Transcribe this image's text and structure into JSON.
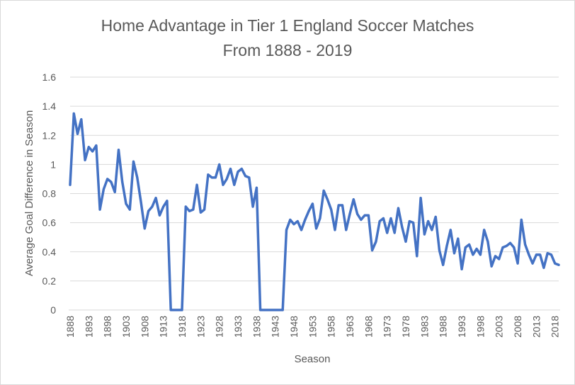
{
  "chart_data": {
    "type": "line",
    "title_line1": "Home Advantage in Tier 1 England Soccer Matches",
    "title_line2": "From 1888 - 2019",
    "xlabel": "Season",
    "ylabel": "Average Goal Difference in Season",
    "ylim": [
      0,
      1.6
    ],
    "y_ticks": [
      "0",
      "0.2",
      "0.4",
      "0.6",
      "0.8",
      "1",
      "1.2",
      "1.4",
      "1.6"
    ],
    "x_tick_labels": [
      "1888",
      "1893",
      "1898",
      "1903",
      "1908",
      "1913",
      "1918",
      "1923",
      "1928",
      "1933",
      "1938",
      "1943",
      "1948",
      "1953",
      "1958",
      "1963",
      "1968",
      "1973",
      "1978",
      "1983",
      "1988",
      "1993",
      "1998",
      "2003",
      "2008",
      "2013",
      "2018"
    ],
    "grid": "horizontal",
    "legend": "none",
    "line_color": "#4472c4",
    "series": [
      {
        "x": [
          1888,
          1889,
          1890,
          1891,
          1892,
          1893,
          1894,
          1895,
          1896,
          1897,
          1898,
          1899,
          1900,
          1901,
          1902,
          1903,
          1904,
          1905,
          1906,
          1907,
          1908,
          1909,
          1910,
          1911,
          1912,
          1913,
          1914,
          1915,
          1916,
          1917,
          1918,
          1919,
          1920,
          1921,
          1922,
          1923,
          1924,
          1925,
          1926,
          1927,
          1928,
          1929,
          1930,
          1931,
          1932,
          1933,
          1934,
          1935,
          1936,
          1937,
          1938,
          1939,
          1940,
          1941,
          1942,
          1943,
          1944,
          1945,
          1946,
          1947,
          1948,
          1949,
          1950,
          1951,
          1952,
          1953,
          1954,
          1955,
          1956,
          1957,
          1958,
          1959,
          1960,
          1961,
          1962,
          1963,
          1964,
          1965,
          1966,
          1967,
          1968,
          1969,
          1970,
          1971,
          1972,
          1973,
          1974,
          1975,
          1976,
          1977,
          1978,
          1979,
          1980,
          1981,
          1982,
          1983,
          1984,
          1985,
          1986,
          1987,
          1988,
          1989,
          1990,
          1991,
          1992,
          1993,
          1994,
          1995,
          1996,
          1997,
          1998,
          1999,
          2000,
          2001,
          2002,
          2003,
          2004,
          2005,
          2006,
          2007,
          2008,
          2009,
          2010,
          2011,
          2012,
          2013,
          2014,
          2015,
          2016,
          2017,
          2018,
          2019
        ],
        "values": [
          0.86,
          1.35,
          1.21,
          1.31,
          1.03,
          1.12,
          1.09,
          1.13,
          0.69,
          0.83,
          0.9,
          0.88,
          0.81,
          1.1,
          0.88,
          0.73,
          0.69,
          1.02,
          0.91,
          0.74,
          0.56,
          0.68,
          0.71,
          0.77,
          0.65,
          0.71,
          0.75,
          0,
          0,
          0,
          0,
          0.71,
          0.68,
          0.69,
          0.86,
          0.67,
          0.69,
          0.93,
          0.91,
          0.91,
          1.0,
          0.86,
          0.9,
          0.97,
          0.86,
          0.95,
          0.97,
          0.92,
          0.91,
          0.71,
          0.84,
          0,
          0,
          0,
          0,
          0,
          0,
          0,
          0.55,
          0.62,
          0.59,
          0.61,
          0.55,
          0.62,
          0.68,
          0.73,
          0.56,
          0.63,
          0.82,
          0.76,
          0.69,
          0.55,
          0.72,
          0.72,
          0.55,
          0.66,
          0.76,
          0.66,
          0.62,
          0.65,
          0.65,
          0.41,
          0.47,
          0.61,
          0.63,
          0.53,
          0.63,
          0.53,
          0.7,
          0.57,
          0.47,
          0.61,
          0.6,
          0.37,
          0.77,
          0.52,
          0.61,
          0.55,
          0.64,
          0.41,
          0.31,
          0.44,
          0.55,
          0.39,
          0.49,
          0.28,
          0.43,
          0.45,
          0.38,
          0.42,
          0.38,
          0.55,
          0.47,
          0.3,
          0.37,
          0.35,
          0.43,
          0.44,
          0.46,
          0.43,
          0.32,
          0.62,
          0.45,
          0.38,
          0.32,
          0.38,
          0.38,
          0.29,
          0.39,
          0.38,
          0.32,
          0.31
        ]
      }
    ]
  }
}
